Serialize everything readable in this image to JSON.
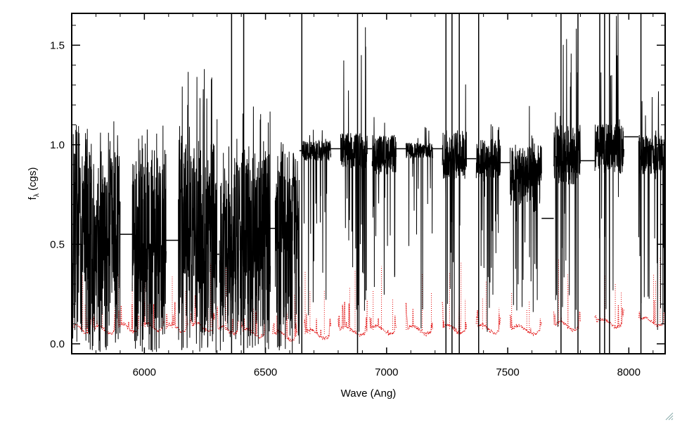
{
  "chart_data": {
    "type": "line",
    "title": "",
    "xlabel": "Wave (Ang)",
    "ylabel": "f",
    "ylabel_subscript": "λ",
    "ylabel_suffix": " (cgs)",
    "xlim": [
      5700,
      8150
    ],
    "ylim": [
      -0.05,
      1.66
    ],
    "xticks": [
      6000,
      6500,
      7000,
      7500,
      8000
    ],
    "yticks": [
      0.0,
      0.5,
      1.0,
      1.5
    ],
    "ytick_labels": [
      "0.0",
      "0.5",
      "1.0",
      "1.5"
    ],
    "grid": false,
    "legend": "none",
    "series": [
      {
        "color": "#000000",
        "style": "solid",
        "segments": [
          {
            "x0": 5700,
            "x1": 5900,
            "base": 0.45,
            "noise": 0.5,
            "max": 1.12
          },
          {
            "x0": 5950,
            "x1": 6090,
            "base": 0.42,
            "noise": 0.5,
            "max": 1.1
          },
          {
            "x0": 6140,
            "x1": 6300,
            "base": 0.45,
            "noise": 0.55,
            "max": 1.43
          },
          {
            "x0": 6310,
            "x1": 6360,
            "base": 0.35,
            "noise": 0.45,
            "max": 1.0
          },
          {
            "x0": 6360,
            "x1": 6520,
            "base": 0.45,
            "noise": 0.5,
            "max": 1.2
          },
          {
            "x0": 6540,
            "x1": 6640,
            "base": 0.55,
            "noise": 0.4,
            "max": 1.1
          },
          {
            "x0": 6650,
            "x1": 6770,
            "base": 0.97,
            "noise": 0.1,
            "max": 1.1
          },
          {
            "x0": 6810,
            "x1": 6920,
            "base": 0.97,
            "noise": 0.18,
            "max": 1.6
          },
          {
            "x0": 6940,
            "x1": 7040,
            "base": 0.95,
            "noise": 0.2,
            "max": 1.26
          },
          {
            "x0": 7080,
            "x1": 7190,
            "base": 0.97,
            "noise": 0.08,
            "max": 1.13
          },
          {
            "x0": 7230,
            "x1": 7330,
            "base": 0.95,
            "noise": 0.25,
            "max": 1.66
          },
          {
            "x0": 7370,
            "x1": 7470,
            "base": 0.93,
            "noise": 0.2,
            "max": 1.3
          },
          {
            "x0": 7510,
            "x1": 7640,
            "base": 0.85,
            "noise": 0.3,
            "max": 1.2
          },
          {
            "x0": 7690,
            "x1": 7800,
            "base": 0.95,
            "noise": 0.3,
            "max": 1.66
          },
          {
            "x0": 7860,
            "x1": 7980,
            "base": 0.98,
            "noise": 0.25,
            "max": 1.66
          },
          {
            "x0": 8040,
            "x1": 8150,
            "base": 0.95,
            "noise": 0.2,
            "max": 1.35
          }
        ],
        "gap_lines": [
          {
            "x0": 5900,
            "x1": 5950,
            "y": 0.55
          },
          {
            "x0": 6090,
            "x1": 6140,
            "y": 0.52
          },
          {
            "x0": 6300,
            "x1": 6310,
            "y": 0.45
          },
          {
            "x0": 6520,
            "x1": 6540,
            "y": 0.58
          },
          {
            "x0": 6640,
            "x1": 6650,
            "y": 0.97
          },
          {
            "x0": 6770,
            "x1": 6810,
            "y": 0.98
          },
          {
            "x0": 6920,
            "x1": 6940,
            "y": 0.98
          },
          {
            "x0": 7040,
            "x1": 7080,
            "y": 0.98
          },
          {
            "x0": 7190,
            "x1": 7230,
            "y": 0.98
          },
          {
            "x0": 7330,
            "x1": 7370,
            "y": 0.93
          },
          {
            "x0": 7470,
            "x1": 7510,
            "y": 0.91
          },
          {
            "x0": 7640,
            "x1": 7690,
            "y": 0.63
          },
          {
            "x0": 7800,
            "x1": 7860,
            "y": 0.92
          },
          {
            "x0": 7980,
            "x1": 8040,
            "y": 1.04
          }
        ],
        "spikes": [
          6360,
          6410,
          6650,
          6880,
          7245,
          7270,
          7300,
          7380,
          7720,
          7790,
          7880,
          7900,
          7920,
          8050
        ]
      },
      {
        "color": "#e00000",
        "style": "dotted",
        "segments": [
          {
            "x0": 5700,
            "x1": 5780,
            "base": 0.075
          },
          {
            "x0": 5790,
            "x1": 5880,
            "base": 0.07
          },
          {
            "x0": 5890,
            "x1": 5980,
            "base": 0.08
          },
          {
            "x0": 5990,
            "x1": 6080,
            "base": 0.085
          },
          {
            "x0": 6090,
            "x1": 6180,
            "base": 0.08
          },
          {
            "x0": 6190,
            "x1": 6290,
            "base": 0.085
          },
          {
            "x0": 6300,
            "x1": 6390,
            "base": 0.07
          },
          {
            "x0": 6400,
            "x1": 6500,
            "base": 0.055
          },
          {
            "x0": 6530,
            "x1": 6630,
            "base": 0.04
          },
          {
            "x0": 6660,
            "x1": 6770,
            "base": 0.05
          },
          {
            "x0": 6800,
            "x1": 6920,
            "base": 0.065
          },
          {
            "x0": 6930,
            "x1": 7040,
            "base": 0.07
          },
          {
            "x0": 7080,
            "x1": 7190,
            "base": 0.07
          },
          {
            "x0": 7230,
            "x1": 7330,
            "base": 0.075
          },
          {
            "x0": 7370,
            "x1": 7470,
            "base": 0.075
          },
          {
            "x0": 7510,
            "x1": 7640,
            "base": 0.07
          },
          {
            "x0": 7690,
            "x1": 7800,
            "base": 0.09
          },
          {
            "x0": 7860,
            "x1": 7980,
            "base": 0.105
          },
          {
            "x0": 8040,
            "x1": 8150,
            "base": 0.11
          }
        ]
      }
    ]
  }
}
